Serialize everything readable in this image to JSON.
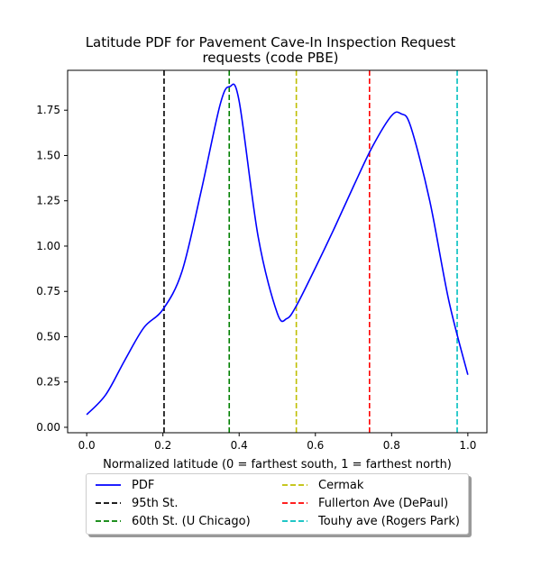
{
  "chart_data": {
    "type": "line",
    "title": "Latitude PDF for Pavement Cave-In Inspection Request requests (code PBE)",
    "title_lines": [
      "Latitude PDF for Pavement Cave-In Inspection Request",
      "requests (code PBE)"
    ],
    "xlabel": "Normalized latitude (0 = farthest south, 1 = farthest north)",
    "ylabel": "",
    "xlim": [
      -0.05,
      1.05
    ],
    "ylim": [
      -0.03,
      1.97
    ],
    "xticks": [
      0.0,
      0.2,
      0.4,
      0.6,
      0.8,
      1.0
    ],
    "xtick_labels": [
      "0.0",
      "0.2",
      "0.4",
      "0.6",
      "0.8",
      "1.0"
    ],
    "yticks": [
      0.0,
      0.25,
      0.5,
      0.75,
      1.0,
      1.25,
      1.5,
      1.75
    ],
    "ytick_labels": [
      "0.00",
      "0.25",
      "0.50",
      "0.75",
      "1.00",
      "1.25",
      "1.50",
      "1.75"
    ],
    "grid": false,
    "legend_position": "below",
    "series": [
      {
        "name": "PDF",
        "color": "#0000ff",
        "style": "solid",
        "x": [
          0.0,
          0.05,
          0.1,
          0.15,
          0.2,
          0.25,
          0.3,
          0.35,
          0.375,
          0.4,
          0.45,
          0.5,
          0.525,
          0.55,
          0.6,
          0.65,
          0.7,
          0.75,
          0.8,
          0.825,
          0.85,
          0.9,
          0.95,
          1.0
        ],
        "y": [
          0.07,
          0.18,
          0.37,
          0.55,
          0.65,
          0.86,
          1.3,
          1.78,
          1.88,
          1.8,
          1.05,
          0.63,
          0.6,
          0.67,
          0.88,
          1.1,
          1.33,
          1.55,
          1.72,
          1.73,
          1.66,
          1.25,
          0.7,
          0.29
        ]
      }
    ],
    "vlines": [
      {
        "name": "95th St.",
        "x": 0.203,
        "color": "#000000"
      },
      {
        "name": "60th St. (U Chicago)",
        "x": 0.374,
        "color": "#008000"
      },
      {
        "name": "Cermak",
        "x": 0.55,
        "color": "#bfbf00"
      },
      {
        "name": "Fullerton Ave (DePaul)",
        "x": 0.742,
        "color": "#ff0000"
      },
      {
        "name": "Touhy ave (Rogers Park)",
        "x": 0.972,
        "color": "#00bfbf"
      }
    ]
  }
}
